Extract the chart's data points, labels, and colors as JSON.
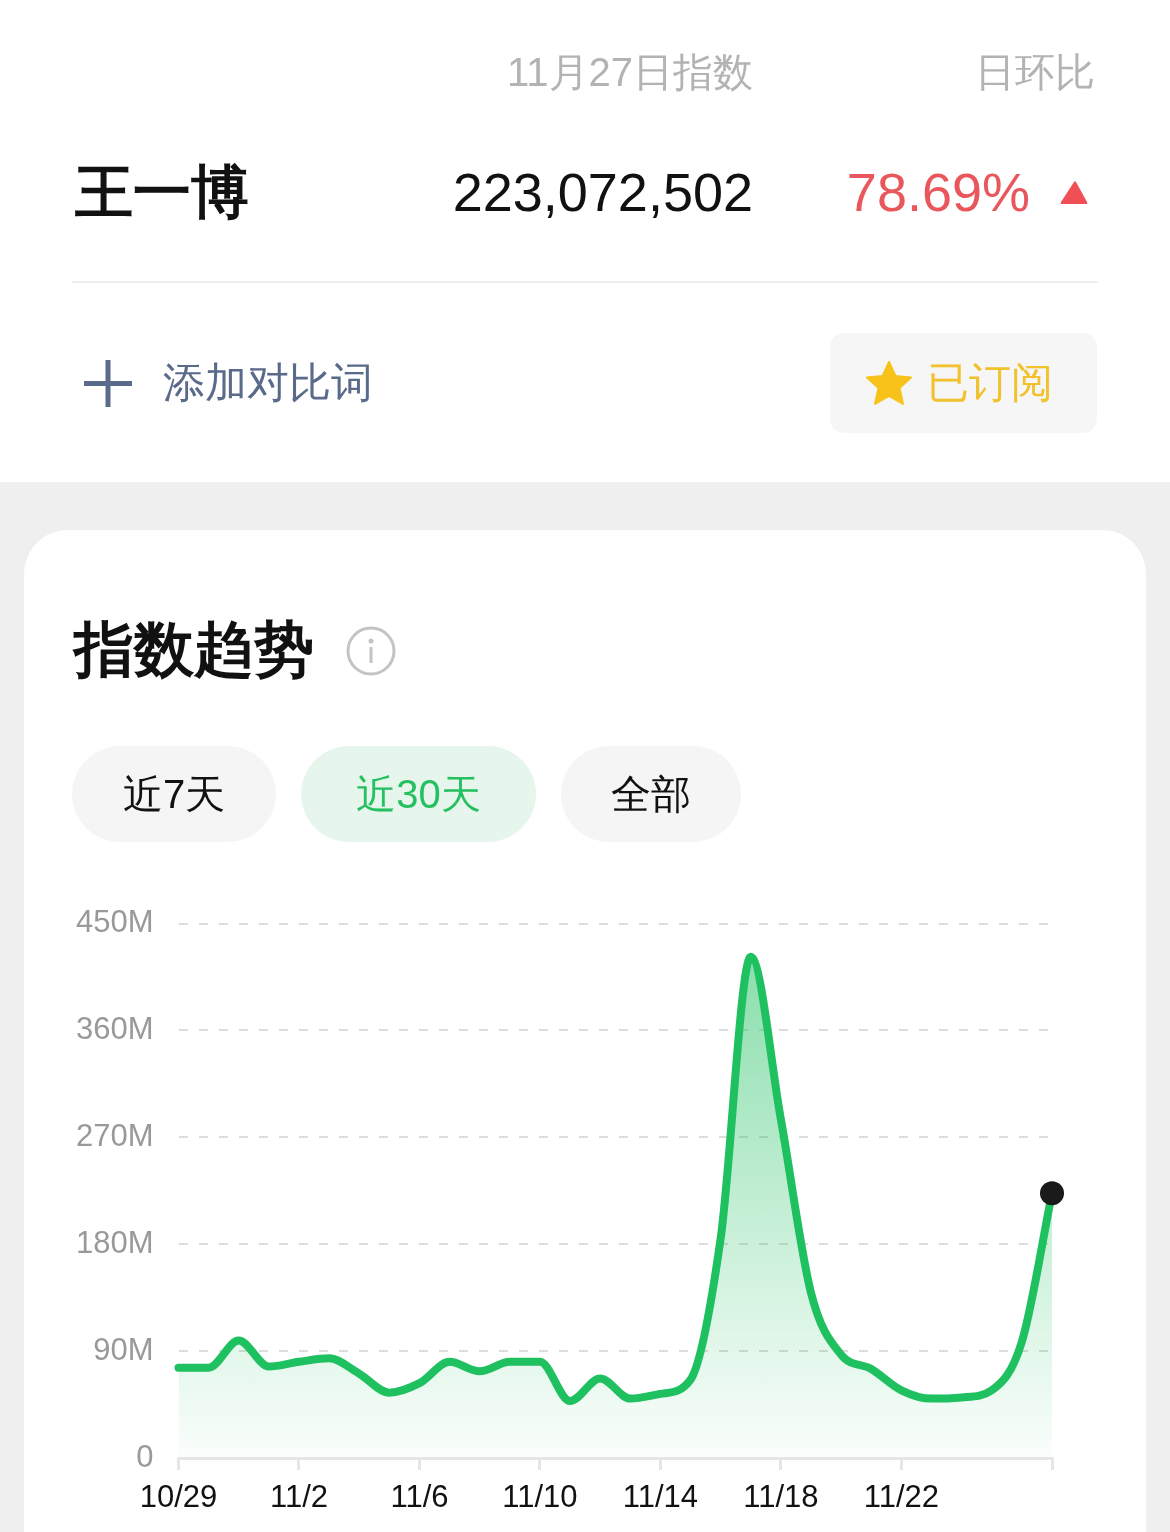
{
  "chart_data": {
    "type": "area",
    "title": "指数趋势",
    "x": [
      "--10-29",
      "--10-30",
      "--10-31",
      "--11-01",
      "--11-02",
      "--11-03",
      "--11-04",
      "--11-05",
      "--11-06",
      "--11-07",
      "--11-08",
      "--11-09",
      "--11-10",
      "--11-11",
      "--11-12",
      "--11-13",
      "--11-14",
      "--11-15",
      "--11-16",
      "--11-17",
      "--11-18",
      "--11-19",
      "--11-20",
      "--11-21",
      "--11-22",
      "--11-23",
      "--11-24",
      "--11-25",
      "--11-26",
      "--11-27"
    ],
    "series": [
      {
        "color": "#1ec060",
        "marker": "none",
        "values": [
          76,
          76,
          99,
          77,
          81,
          84,
          71,
          55,
          63,
          81,
          73,
          81,
          81,
          48,
          67,
          50,
          54,
          66,
          185,
          422,
          285,
          139,
          87,
          75,
          57,
          50,
          51,
          57,
          98,
          223
        ]
      },
      {
        "type": "scatter",
        "color": "#1a1a1a",
        "marker": "circle",
        "x": [
          "--11-27"
        ],
        "values": [
          223
        ]
      }
    ],
    "xlim": [
      "--10-29",
      "--11-27"
    ],
    "xticks": [
      {
        "value": "--10-29",
        "label": "10/29"
      },
      {
        "value": "--11-02",
        "label": "11/2"
      },
      {
        "value": "--11-06",
        "label": "11/6"
      },
      {
        "value": "--11-10",
        "label": "11/10"
      },
      {
        "value": "--11-14",
        "label": "11/14"
      },
      {
        "value": "--11-18",
        "label": "11/18"
      },
      {
        "value": "--11-22",
        "label": "11/22"
      },
      {
        "value": "--11-27",
        "label": null
      }
    ],
    "ylim": [
      0,
      450
    ],
    "yticks": [
      0,
      {
        "value": 90,
        "label": "90M"
      },
      {
        "value": 180,
        "label": "180M"
      },
      {
        "value": 270,
        "label": "270M"
      },
      {
        "value": 360,
        "label": "360M"
      },
      {
        "value": 450,
        "label": "450M"
      }
    ],
    "grid": "y",
    "annotations": [
      "11月27日指数",
      "日环比",
      "王一博",
      "223,072,502",
      "78.69%",
      "添加对比词",
      "已订阅",
      "近7天",
      "近30天",
      "全部"
    ]
  }
}
